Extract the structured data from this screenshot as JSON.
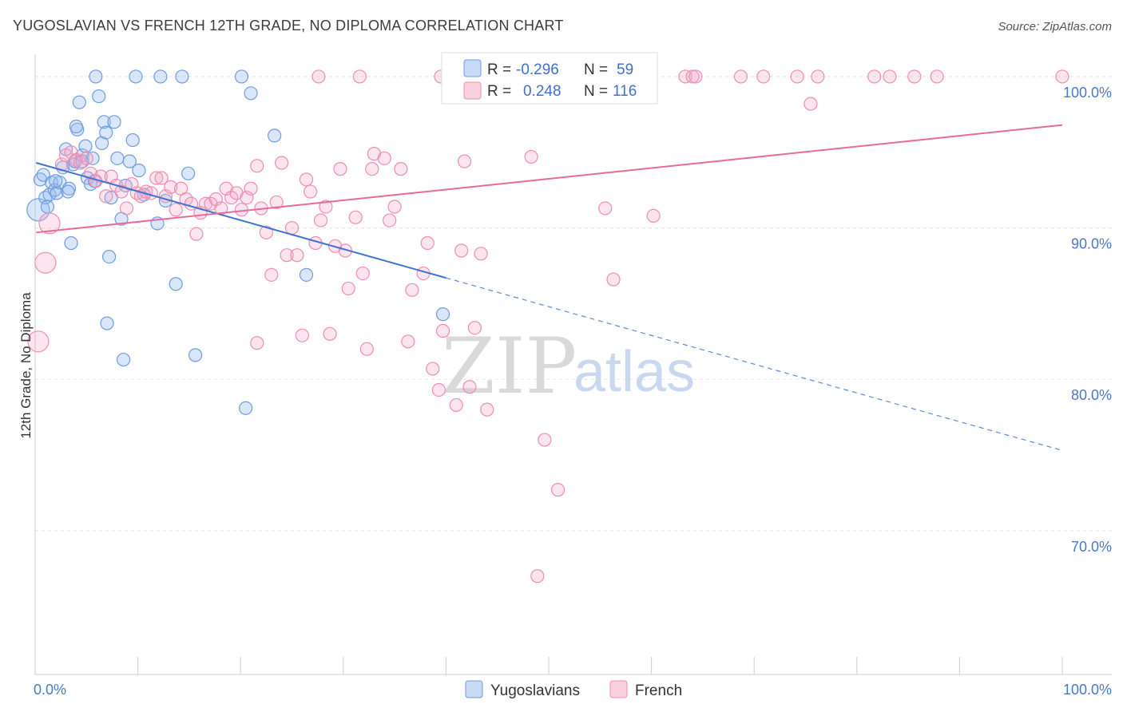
{
  "title": "YUGOSLAVIAN VS FRENCH 12TH GRADE, NO DIPLOMA CORRELATION CHART",
  "source": "Source: ZipAtlas.com",
  "watermark": {
    "zip": "ZIP",
    "atlas": "atlas"
  },
  "legend_box": [
    {
      "r_label": "R =",
      "r_value": "-0.296",
      "n_label": "N =",
      "n_value": "59",
      "color": "#6f9be0"
    },
    {
      "r_label": "R =",
      "r_value": "0.248",
      "n_label": "N =",
      "n_value": "116",
      "color": "#f08cb0"
    }
  ],
  "bottom_legend": [
    {
      "label": "Yugoslavians",
      "color": "#6f9be0"
    },
    {
      "label": "French",
      "color": "#f08cb0"
    }
  ],
  "chart_data": {
    "type": "scatter",
    "title": "YUGOSLAVIAN VS FRENCH 12TH GRADE, NO DIPLOMA CORRELATION CHART",
    "xlabel": "",
    "ylabel": "12th Grade, No Diploma",
    "xlim": [
      0,
      100
    ],
    "ylim": [
      60.5,
      102
    ],
    "x_ticks": [
      "0.0%",
      "100.0%"
    ],
    "y_ticks": [
      {
        "value": 100,
        "label": "100.0%"
      },
      {
        "value": 90,
        "label": "90.0%"
      },
      {
        "value": 80,
        "label": "80.0%"
      },
      {
        "value": 70,
        "label": "70.0%"
      }
    ],
    "grid": true,
    "legend_position": "bottom",
    "series": [
      {
        "name": "Yugoslavians",
        "color": "#6f9be0",
        "trend": {
          "x": [
            0.1,
            40.0
          ],
          "y": [
            94.3,
            86.7
          ],
          "dashed_to": [
            100,
            75.3
          ]
        },
        "points": [
          [
            0.3,
            91.2
          ],
          [
            0.5,
            93.2
          ],
          [
            0.8,
            93.5
          ],
          [
            1.0,
            92.0
          ],
          [
            1.2,
            91.4
          ],
          [
            1.4,
            92.2
          ],
          [
            1.6,
            93.0
          ],
          [
            1.9,
            92.5
          ],
          [
            2.1,
            92.3
          ],
          [
            2.4,
            93.0
          ],
          [
            2.7,
            94.0
          ],
          [
            3.0,
            95.2
          ],
          [
            3.3,
            92.6
          ],
          [
            3.5,
            89.0
          ],
          [
            3.7,
            94.2
          ],
          [
            3.9,
            94.4
          ],
          [
            4.1,
            96.5
          ],
          [
            4.3,
            98.3
          ],
          [
            4.6,
            94.8
          ],
          [
            4.9,
            95.4
          ],
          [
            5.1,
            93.3
          ],
          [
            5.4,
            92.9
          ],
          [
            5.6,
            94.6
          ],
          [
            5.8,
            93.1
          ],
          [
            6.2,
            98.7
          ],
          [
            6.5,
            95.6
          ],
          [
            6.7,
            97.0
          ],
          [
            6.9,
            96.3
          ],
          [
            7.2,
            88.1
          ],
          [
            7.4,
            92.0
          ],
          [
            7.7,
            97.0
          ],
          [
            8.0,
            94.6
          ],
          [
            8.4,
            90.6
          ],
          [
            8.6,
            81.3
          ],
          [
            8.8,
            92.8
          ],
          [
            9.2,
            94.4
          ],
          [
            9.5,
            95.8
          ],
          [
            9.8,
            100.0
          ],
          [
            10.1,
            93.8
          ],
          [
            10.6,
            92.2
          ],
          [
            11.9,
            90.3
          ],
          [
            12.2,
            100.0
          ],
          [
            12.7,
            91.8
          ],
          [
            13.7,
            86.3
          ],
          [
            14.3,
            100.0
          ],
          [
            14.9,
            93.6
          ],
          [
            15.6,
            81.6
          ],
          [
            20.1,
            100.0
          ],
          [
            20.5,
            78.1
          ],
          [
            21.0,
            98.9
          ],
          [
            23.3,
            96.1
          ],
          [
            26.4,
            86.9
          ],
          [
            39.7,
            84.3
          ],
          [
            5.9,
            100.0
          ],
          [
            4.0,
            96.7
          ],
          [
            3.2,
            92.4
          ],
          [
            7.0,
            83.7
          ],
          [
            2.0,
            93.1
          ],
          [
            4.6,
            94.4
          ]
        ]
      },
      {
        "name": "French",
        "color": "#f08cb0",
        "trend": {
          "x": [
            0.1,
            100.0
          ],
          "y": [
            89.7,
            96.8
          ]
        },
        "points": [
          [
            0.3,
            82.5
          ],
          [
            1.0,
            87.7
          ],
          [
            1.4,
            90.3
          ],
          [
            2.6,
            94.2
          ],
          [
            3.0,
            94.8
          ],
          [
            3.5,
            95.0
          ],
          [
            4.0,
            94.5
          ],
          [
            4.4,
            94.3
          ],
          [
            5.0,
            94.6
          ],
          [
            5.4,
            93.6
          ],
          [
            5.9,
            93.1
          ],
          [
            6.4,
            93.4
          ],
          [
            6.9,
            92.1
          ],
          [
            7.4,
            93.4
          ],
          [
            7.9,
            92.8
          ],
          [
            8.4,
            92.4
          ],
          [
            8.9,
            91.3
          ],
          [
            9.4,
            92.9
          ],
          [
            9.9,
            92.3
          ],
          [
            10.3,
            92.1
          ],
          [
            10.8,
            92.4
          ],
          [
            11.3,
            92.3
          ],
          [
            11.8,
            93.3
          ],
          [
            12.3,
            93.3
          ],
          [
            12.7,
            92.1
          ],
          [
            13.2,
            92.7
          ],
          [
            13.7,
            91.2
          ],
          [
            14.2,
            92.6
          ],
          [
            14.7,
            91.9
          ],
          [
            15.2,
            91.6
          ],
          [
            15.7,
            89.6
          ],
          [
            16.1,
            91.0
          ],
          [
            16.6,
            91.6
          ],
          [
            17.1,
            91.6
          ],
          [
            17.6,
            91.9
          ],
          [
            18.1,
            91.3
          ],
          [
            18.6,
            92.6
          ],
          [
            19.1,
            92.0
          ],
          [
            19.6,
            92.3
          ],
          [
            20.1,
            91.2
          ],
          [
            20.6,
            92.0
          ],
          [
            21.0,
            92.6
          ],
          [
            21.6,
            94.1
          ],
          [
            22.0,
            91.3
          ],
          [
            22.5,
            89.7
          ],
          [
            23.0,
            86.9
          ],
          [
            23.5,
            91.7
          ],
          [
            24.0,
            94.3
          ],
          [
            24.5,
            88.2
          ],
          [
            25.0,
            90.0
          ],
          [
            25.5,
            88.2
          ],
          [
            26.0,
            82.9
          ],
          [
            26.4,
            93.2
          ],
          [
            26.8,
            92.4
          ],
          [
            27.3,
            89.0
          ],
          [
            27.8,
            90.5
          ],
          [
            28.3,
            91.4
          ],
          [
            28.7,
            83.0
          ],
          [
            29.2,
            88.8
          ],
          [
            29.7,
            93.9
          ],
          [
            30.2,
            88.5
          ],
          [
            30.5,
            86.0
          ],
          [
            31.2,
            90.7
          ],
          [
            31.9,
            87.0
          ],
          [
            32.3,
            82.0
          ],
          [
            32.8,
            93.9
          ],
          [
            33.0,
            94.9
          ],
          [
            34.0,
            94.6
          ],
          [
            34.5,
            90.5
          ],
          [
            35.0,
            91.4
          ],
          [
            35.6,
            93.9
          ],
          [
            36.3,
            82.5
          ],
          [
            36.7,
            85.9
          ],
          [
            37.8,
            87.0
          ],
          [
            38.2,
            89.0
          ],
          [
            38.7,
            80.7
          ],
          [
            39.3,
            79.3
          ],
          [
            39.7,
            83.2
          ],
          [
            40.3,
            100.0
          ],
          [
            41.0,
            78.3
          ],
          [
            41.5,
            88.5
          ],
          [
            41.8,
            94.4
          ],
          [
            42.3,
            79.5
          ],
          [
            42.8,
            83.4
          ],
          [
            43.4,
            88.3
          ],
          [
            44.0,
            78.0
          ],
          [
            44.6,
            100.0
          ],
          [
            45.3,
            100.0
          ],
          [
            47.1,
            100.0
          ],
          [
            48.3,
            94.7
          ],
          [
            49.6,
            76.0
          ],
          [
            50.9,
            72.7
          ],
          [
            52.0,
            100.0
          ],
          [
            53.7,
            100.0
          ],
          [
            55.5,
            91.3
          ],
          [
            56.3,
            86.6
          ],
          [
            58.8,
            100.0
          ],
          [
            60.2,
            90.8
          ],
          [
            63.3,
            100.0
          ],
          [
            64.0,
            100.0
          ],
          [
            64.3,
            100.0
          ],
          [
            68.7,
            100.0
          ],
          [
            70.9,
            100.0
          ],
          [
            74.2,
            100.0
          ],
          [
            75.5,
            98.2
          ],
          [
            76.2,
            100.0
          ],
          [
            81.7,
            100.0
          ],
          [
            83.2,
            100.0
          ],
          [
            85.6,
            100.0
          ],
          [
            87.8,
            100.0
          ],
          [
            100.0,
            100.0
          ],
          [
            31.6,
            100.0
          ],
          [
            39.5,
            100.0
          ],
          [
            21.6,
            82.4
          ],
          [
            48.9,
            67.0
          ],
          [
            27.6,
            100.0
          ]
        ]
      }
    ]
  }
}
